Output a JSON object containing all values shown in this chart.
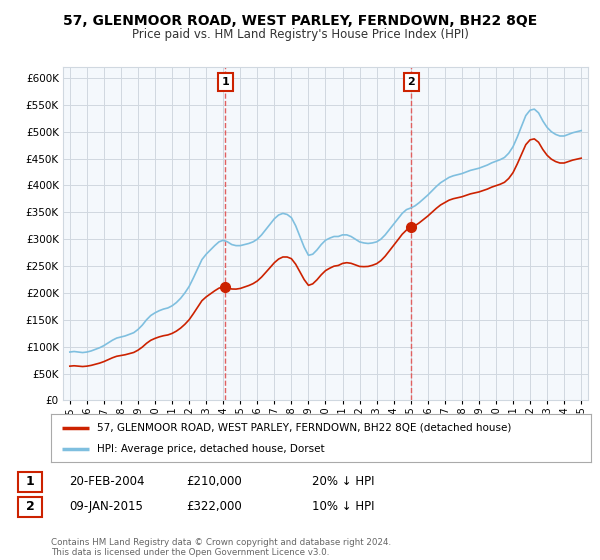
{
  "title": "57, GLENMOOR ROAD, WEST PARLEY, FERNDOWN, BH22 8QE",
  "subtitle": "Price paid vs. HM Land Registry's House Price Index (HPI)",
  "legend_label_red": "57, GLENMOOR ROAD, WEST PARLEY, FERNDOWN, BH22 8QE (detached house)",
  "legend_label_blue": "HPI: Average price, detached house, Dorset",
  "annotation1_date": "20-FEB-2004",
  "annotation1_price": "£210,000",
  "annotation1_hpi": "20% ↓ HPI",
  "annotation2_date": "09-JAN-2015",
  "annotation2_price": "£322,000",
  "annotation2_hpi": "10% ↓ HPI",
  "footer": "Contains HM Land Registry data © Crown copyright and database right 2024.\nThis data is licensed under the Open Government Licence v3.0.",
  "ylim_min": 0,
  "ylim_max": 620000,
  "sale1_year": 2004.12,
  "sale1_price": 210000,
  "sale2_year": 2015.03,
  "sale2_price": 322000,
  "hpi_color": "#7fbfdf",
  "price_color": "#cc2200",
  "vline_color": "#e06060",
  "background_color": "#ffffff",
  "plot_background": "#f4f8fc",
  "grid_color": "#d0d8e0"
}
